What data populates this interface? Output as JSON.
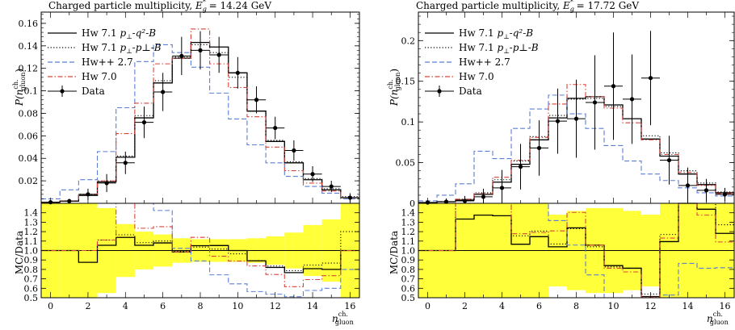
{
  "chart_data": [
    {
      "type": "line",
      "title_main": "Charged particle multiplicity, ",
      "title_var": "E",
      "title_sub": "g",
      "title_sup": "*",
      "title_value": " = 14.24 GeV",
      "ylabel_top": "P(n",
      "ylabel_sup": "ch.",
      "ylabel_sub": "gluon",
      "ylabel_close": ")",
      "ylabel_ratio": "MC/Data",
      "xlabel": "n",
      "xlabel_sup": "ch.",
      "xlabel_sub": "gluon",
      "xlim": [
        -0.5,
        16.5
      ],
      "ylim": [
        0,
        0.17
      ],
      "ratio_ylim": [
        0.5,
        1.5
      ],
      "x_ticks": [
        0,
        2,
        4,
        6,
        8,
        10,
        12,
        14,
        16
      ],
      "y_ticks": [
        0.02,
        0.04,
        0.06,
        0.08,
        0.1,
        0.12,
        0.14,
        0.16
      ],
      "y_tick_labels": [
        "0.02",
        "0.04",
        "0.06",
        "0.08",
        "0.1",
        "0.12",
        "0.14",
        "0.16"
      ],
      "ratio_ticks": [
        0.5,
        0.6,
        0.7,
        0.8,
        0.9,
        1.0,
        1.1,
        1.2,
        1.3,
        1.4
      ],
      "ratio_tick_labels": [
        "0.5",
        "0.6",
        "0.7",
        "0.8",
        "0.9",
        "1.0",
        "1.1",
        "1.2",
        "1.3",
        "1.4"
      ],
      "legend_position": "top-left",
      "x": [
        0,
        1,
        2,
        3,
        4,
        5,
        6,
        7,
        8,
        9,
        10,
        11,
        12,
        13,
        14,
        15,
        16
      ],
      "data": {
        "name": "Data",
        "values": [
          0.001,
          0.002,
          0.008,
          0.018,
          0.036,
          0.072,
          0.099,
          0.131,
          0.136,
          0.132,
          0.116,
          0.092,
          0.067,
          0.047,
          0.026,
          0.015,
          0.005
        ],
        "errors": [
          0.001,
          0.002,
          0.005,
          0.008,
          0.01,
          0.014,
          0.017,
          0.017,
          0.017,
          0.016,
          0.014,
          0.012,
          0.01,
          0.009,
          0.007,
          0.005,
          0.004
        ]
      },
      "series": [
        {
          "name_pre": "Hw 7.1 ",
          "name_var": "p",
          "name_sub": "⊥",
          "name_post": "-q²-B",
          "style": "solid",
          "color": "#000000",
          "values": [
            0.001,
            0.002,
            0.007,
            0.019,
            0.041,
            0.076,
            0.107,
            0.129,
            0.143,
            0.139,
            0.116,
            0.082,
            0.055,
            0.036,
            0.021,
            0.012,
            0.005
          ]
        },
        {
          "name_pre": "Hw 7.1 ",
          "name_var": "p",
          "name_sub": "⊥",
          "name_post": "-p⊥-B",
          "style": "dotted",
          "color": "#000000",
          "values": [
            0.001,
            0.002,
            0.008,
            0.02,
            0.042,
            0.078,
            0.109,
            0.13,
            0.141,
            0.134,
            0.112,
            0.082,
            0.056,
            0.037,
            0.022,
            0.013,
            0.006
          ]
        },
        {
          "name": "Hw++ 2.7",
          "style": "dashed",
          "color": "#5b7fd6",
          "values": [
            0.004,
            0.012,
            0.021,
            0.046,
            0.085,
            0.126,
            0.141,
            0.134,
            0.121,
            0.098,
            0.075,
            0.052,
            0.036,
            0.024,
            0.015,
            0.009,
            0.004
          ]
        },
        {
          "name": "Hw 7.0",
          "style": "dashdot",
          "color": "#d9443a",
          "values": [
            0.001,
            0.002,
            0.008,
            0.02,
            0.062,
            0.089,
            0.124,
            0.129,
            0.155,
            0.124,
            0.103,
            0.077,
            0.05,
            0.029,
            0.018,
            0.011,
            0.005
          ]
        }
      ],
      "ratio_band": [
        [
          0.5,
          1.5
        ],
        [
          0.5,
          1.5
        ],
        [
          0.5,
          1.5
        ],
        [
          0.55,
          1.45
        ],
        [
          0.72,
          1.28
        ],
        [
          0.8,
          1.2
        ],
        [
          0.83,
          1.17
        ],
        [
          0.87,
          1.13
        ],
        [
          0.88,
          1.12
        ],
        [
          0.88,
          1.12
        ],
        [
          0.88,
          1.12
        ],
        [
          0.87,
          1.13
        ],
        [
          0.85,
          1.15
        ],
        [
          0.81,
          1.19
        ],
        [
          0.73,
          1.27
        ],
        [
          0.67,
          1.33
        ],
        [
          0.5,
          1.5
        ]
      ]
    },
    {
      "type": "line",
      "title_main": "Charged particle multiplicity, ",
      "title_var": "E",
      "title_sub": "g",
      "title_sup": "*",
      "title_value": " = 17.72 GeV",
      "ylabel_top": "P(n",
      "ylabel_sup": "ch.",
      "ylabel_sub": "gluon",
      "ylabel_close": ")",
      "ylabel_ratio": "MC/Data",
      "xlabel": "n",
      "xlabel_sup": "ch.",
      "xlabel_sub": "gluon",
      "xlim": [
        -0.5,
        16.5
      ],
      "ylim": [
        0,
        0.235
      ],
      "ratio_ylim": [
        0.5,
        1.5
      ],
      "x_ticks": [
        0,
        2,
        4,
        6,
        8,
        10,
        12,
        14,
        16
      ],
      "y_ticks": [
        0,
        0.05,
        0.1,
        0.15,
        0.2
      ],
      "y_tick_labels": [
        "0",
        "0.05",
        "0.1",
        "0.15",
        "0.2"
      ],
      "ratio_ticks": [
        0.5,
        0.6,
        0.7,
        0.8,
        0.9,
        1.0,
        1.1,
        1.2,
        1.3,
        1.4
      ],
      "ratio_tick_labels": [
        "0.5",
        "0.6",
        "0.7",
        "0.8",
        "0.9",
        "1.0",
        "1.1",
        "1.2",
        "1.3",
        "1.4"
      ],
      "legend_position": "top-left",
      "x": [
        0,
        1,
        2,
        3,
        4,
        5,
        6,
        7,
        8,
        9,
        10,
        11,
        12,
        13,
        14,
        15,
        16
      ],
      "data": {
        "name": "Data",
        "values": [
          0.001,
          0.002,
          0.003,
          0.008,
          0.019,
          0.045,
          0.068,
          0.101,
          0.104,
          0.124,
          0.144,
          0.128,
          0.154,
          0.053,
          0.022,
          0.016,
          0.011
        ],
        "errors": [
          0.003,
          0.004,
          0.006,
          0.01,
          0.022,
          0.028,
          0.034,
          0.04,
          0.048,
          0.058,
          0.066,
          0.055,
          0.058,
          0.03,
          0.022,
          0.014,
          0.008
        ]
      },
      "series": [
        {
          "name_pre": "Hw 7.1 ",
          "name_var": "p",
          "name_sub": "⊥",
          "name_post": "-q²-B",
          "style": "solid",
          "color": "#000000",
          "values": [
            0.001,
            0.002,
            0.004,
            0.011,
            0.026,
            0.048,
            0.078,
            0.105,
            0.129,
            0.131,
            0.121,
            0.104,
            0.079,
            0.058,
            0.036,
            0.023,
            0.013
          ]
        },
        {
          "name_pre": "Hw 7.1 ",
          "name_var": "p",
          "name_sub": "⊥",
          "name_post": "-p⊥-B",
          "style": "dotted",
          "color": "#000000",
          "values": [
            0.001,
            0.002,
            0.005,
            0.013,
            0.029,
            0.052,
            0.082,
            0.108,
            0.128,
            0.129,
            0.119,
            0.104,
            0.083,
            0.062,
            0.04,
            0.025,
            0.014
          ]
        },
        {
          "name": "Hw++ 2.7",
          "style": "dashed",
          "color": "#5b7fd6",
          "values": [
            0.003,
            0.01,
            0.024,
            0.064,
            0.055,
            0.092,
            0.116,
            0.133,
            0.11,
            0.092,
            0.071,
            0.052,
            0.036,
            0.028,
            0.019,
            0.013,
            0.009
          ]
        },
        {
          "name": "Hw 7.0",
          "style": "dashdot",
          "color": "#d9443a",
          "values": [
            0.001,
            0.002,
            0.005,
            0.012,
            0.032,
            0.053,
            0.081,
            0.122,
            0.146,
            0.131,
            0.117,
            0.099,
            0.078,
            0.06,
            0.038,
            0.022,
            0.012
          ]
        }
      ],
      "ratio_band": [
        [
          0.5,
          1.5
        ],
        [
          0.5,
          1.5
        ],
        [
          0.5,
          1.5
        ],
        [
          0.5,
          1.5
        ],
        [
          0.5,
          1.5
        ],
        [
          0.5,
          1.5
        ],
        [
          0.5,
          1.5
        ],
        [
          0.62,
          1.38
        ],
        [
          0.58,
          1.42
        ],
        [
          0.55,
          1.45
        ],
        [
          0.55,
          1.45
        ],
        [
          0.58,
          1.42
        ],
        [
          0.62,
          1.38
        ],
        [
          0.5,
          1.5
        ],
        [
          0.5,
          1.5
        ],
        [
          0.5,
          1.5
        ],
        [
          0.5,
          1.5
        ]
      ]
    }
  ]
}
